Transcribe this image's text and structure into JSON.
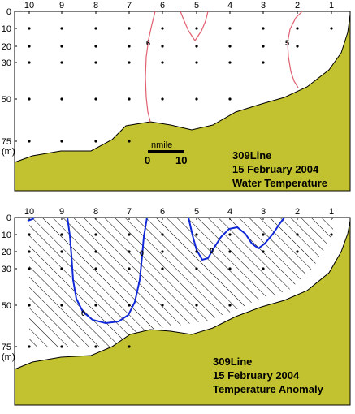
{
  "colors": {
    "seabed": "#c2c230",
    "temperature_contour": "#e06070",
    "anomaly_contour": "#1028d8",
    "station_dot": "#000000"
  },
  "stations": [
    "10",
    "9",
    "8",
    "7",
    "6",
    "5",
    "4",
    "3",
    "2",
    "1"
  ],
  "depth_ticks": [
    "0",
    "10",
    "20",
    "30",
    "50",
    "75",
    "(m)"
  ],
  "scale_bar": {
    "unit": "nmile",
    "start": "0",
    "end": "10"
  },
  "chart_data": [
    {
      "type": "contour",
      "line": "309Line",
      "date": "15 February 2004",
      "title": "Water Temperature",
      "x_categories": [
        "10",
        "9",
        "8",
        "7",
        "6",
        "5",
        "4",
        "3",
        "2",
        "1"
      ],
      "y_ticks": [
        0,
        10,
        20,
        30,
        50,
        75
      ],
      "ylabel": "(m)",
      "y_reversed": true,
      "contour_labels": [
        "6",
        "5"
      ],
      "grid_stations_depths": [
        0,
        10,
        20,
        30,
        50,
        75
      ]
    },
    {
      "type": "contour",
      "line": "309Line",
      "date": "15 February 2004",
      "title": "Temperature Anomaly",
      "x_categories": [
        "10",
        "9",
        "8",
        "7",
        "6",
        "5",
        "4",
        "3",
        "2",
        "1"
      ],
      "y_ticks": [
        0,
        10,
        20,
        30,
        50,
        75
      ],
      "ylabel": "(m)",
      "y_reversed": true,
      "contour_labels": [
        "0",
        "0",
        "0"
      ],
      "hatched_region": "negative anomaly",
      "grid_stations_depths": [
        0,
        10,
        20,
        30,
        50,
        75
      ]
    }
  ]
}
